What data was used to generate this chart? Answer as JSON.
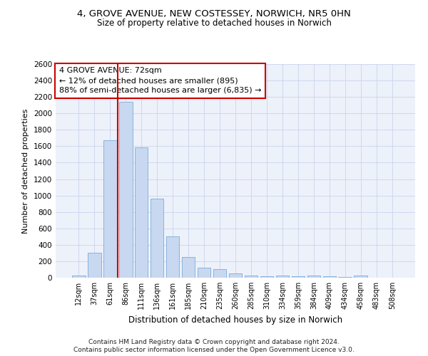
{
  "title_line1": "4, GROVE AVENUE, NEW COSTESSEY, NORWICH, NR5 0HN",
  "title_line2": "Size of property relative to detached houses in Norwich",
  "xlabel": "Distribution of detached houses by size in Norwich",
  "ylabel": "Number of detached properties",
  "bar_values": [
    25,
    300,
    1670,
    2140,
    1590,
    960,
    500,
    250,
    120,
    100,
    50,
    30,
    20,
    25,
    20,
    25,
    20,
    5,
    25,
    0
  ],
  "bar_labels": [
    "12sqm",
    "37sqm",
    "61sqm",
    "86sqm",
    "111sqm",
    "136sqm",
    "161sqm",
    "185sqm",
    "210sqm",
    "235sqm",
    "260sqm",
    "285sqm",
    "310sqm",
    "334sqm",
    "359sqm",
    "384sqm",
    "409sqm",
    "434sqm",
    "458sqm",
    "483sqm",
    "508sqm"
  ],
  "bar_color": "#c8d8f0",
  "bar_edge_color": "#7aacdc",
  "ylim": [
    0,
    2600
  ],
  "yticks": [
    0,
    200,
    400,
    600,
    800,
    1000,
    1200,
    1400,
    1600,
    1800,
    2000,
    2200,
    2400,
    2600
  ],
  "vline_color": "#cc0000",
  "vline_x": 2.5,
  "annotation_line1": "4 GROVE AVENUE: 72sqm",
  "annotation_line2": "← 12% of detached houses are smaller (895)",
  "annotation_line3": "88% of semi-detached houses are larger (6,835) →",
  "footnote1": "Contains HM Land Registry data © Crown copyright and database right 2024.",
  "footnote2": "Contains public sector information licensed under the Open Government Licence v3.0.",
  "grid_color": "#c8d4ec",
  "background_color": "#edf1fa"
}
